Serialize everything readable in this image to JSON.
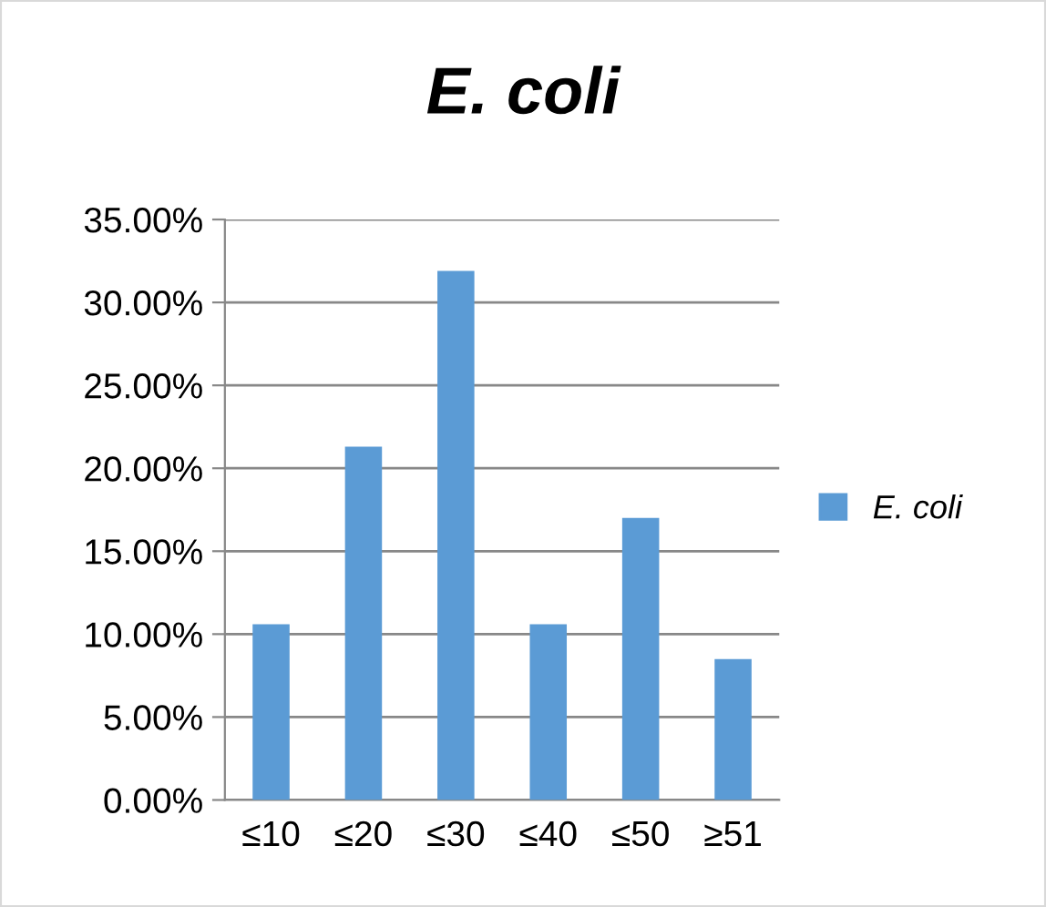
{
  "chart_data": {
    "type": "bar",
    "title": "E. coli",
    "categories": [
      "≤10",
      "≤20",
      "≤30",
      "≤40",
      "≤50",
      "≥51"
    ],
    "series": [
      {
        "name": "E. coli",
        "color": "#5b9bd5",
        "values": [
          10.6,
          21.3,
          31.9,
          10.6,
          17.0,
          8.5
        ]
      }
    ],
    "ylim": [
      0,
      35
    ],
    "yticks": [
      {
        "value": 0,
        "label": "0.00%"
      },
      {
        "value": 5,
        "label": "5.00%"
      },
      {
        "value": 10,
        "label": "10.00%"
      },
      {
        "value": 15,
        "label": "15.00%"
      },
      {
        "value": 20,
        "label": "20.00%"
      },
      {
        "value": 25,
        "label": "25.00%"
      },
      {
        "value": 30,
        "label": "30.00%"
      },
      {
        "value": 35,
        "label": "35.00%"
      }
    ],
    "grid": "y",
    "legend": "right"
  }
}
